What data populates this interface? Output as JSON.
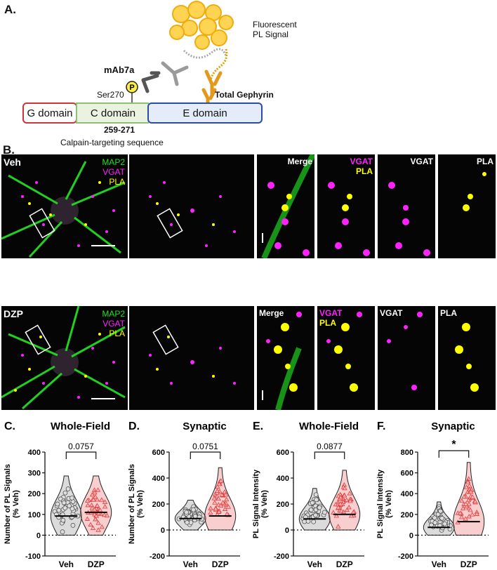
{
  "panelA": {
    "letter": "A.",
    "domains": [
      "G domain",
      "C domain",
      "E domain"
    ],
    "fluorescent_line1": "Fluorescent",
    "fluorescent_line2": "PL Signal",
    "antibody": "mAb7a",
    "phospho_symbol": "P",
    "site": "Ser270",
    "total_gephyrin": "Total Gephyrin",
    "range": "259-271",
    "range_caption": "Calpain-targeting sequence",
    "colors": {
      "g_domain": "#c8353a",
      "c_domain": "#8fbf72",
      "e_domain": "#2b4c9f",
      "c_fill": "#e9f3df",
      "e_fill": "#e4ecf9"
    }
  },
  "panelB": {
    "letter": "B.",
    "rows": [
      {
        "condition": "Veh",
        "legend": [
          "MAP2",
          "VGAT",
          "PLA"
        ],
        "zoom_labels": [
          "Merge",
          "VGAT",
          "PLA",
          "VGAT",
          "PLA"
        ]
      },
      {
        "condition": "DZP",
        "legend": [
          "MAP2",
          "VGAT",
          "PLA"
        ],
        "zoom_labels": [
          "Merge",
          "VGAT",
          "PLA",
          "VGAT",
          "PLA"
        ]
      }
    ],
    "colors": {
      "map2": "#22e022",
      "vgat": "#ff22ff",
      "pla": "#ffff00"
    }
  },
  "plots": [
    {
      "letter": "C.",
      "title": "Whole-Field",
      "ylabel": [
        "Number of PL Signals",
        "(% Veh)"
      ],
      "ylim": [
        -100,
        400
      ],
      "yticks": [
        -100,
        0,
        100,
        200,
        300,
        400
      ],
      "categories": [
        "Veh",
        "DZP"
      ],
      "annotation": "0.0757",
      "medians": [
        92,
        110
      ],
      "max": [
        285,
        285
      ],
      "min": [
        0,
        0
      ]
    },
    {
      "letter": "D.",
      "title": "Synaptic",
      "ylabel": [
        "Number of PL Signals",
        "(% Veh)"
      ],
      "ylim": [
        -200,
        600
      ],
      "yticks": [
        -200,
        0,
        200,
        400,
        600
      ],
      "categories": [
        "Veh",
        "DZP"
      ],
      "annotation": "0.0751",
      "medians": [
        88,
        108
      ],
      "max": [
        230,
        480
      ],
      "min": [
        0,
        0
      ]
    },
    {
      "letter": "E.",
      "title": "Whole-Field",
      "ylabel": [
        "PL Signal Intensity",
        "(% Veh)"
      ],
      "ylim": [
        -200,
        600
      ],
      "yticks": [
        -200,
        0,
        200,
        400,
        600
      ],
      "categories": [
        "Veh",
        "DZP"
      ],
      "annotation": "0.0877",
      "medians": [
        85,
        120
      ],
      "max": [
        320,
        460
      ],
      "min": [
        0,
        0
      ]
    },
    {
      "letter": "F.",
      "title": "Synaptic",
      "ylabel": [
        "PL Signal Intensity",
        "(% Veh)"
      ],
      "ylim": [
        -200,
        800
      ],
      "yticks": [
        -200,
        0,
        200,
        400,
        600,
        800
      ],
      "categories": [
        "Veh",
        "DZP"
      ],
      "annotation": "*",
      "medians": [
        75,
        130
      ],
      "max": [
        320,
        700
      ],
      "min": [
        0,
        0
      ]
    }
  ],
  "chart_data": [
    {
      "type": "violin",
      "title": "Whole-Field",
      "ylabel": "Number of PL Signals (% Veh)",
      "categories": [
        "Veh",
        "DZP"
      ],
      "ylim": [
        -100,
        400
      ],
      "medians": [
        92,
        110
      ],
      "annotation": "0.0757"
    },
    {
      "type": "violin",
      "title": "Synaptic",
      "ylabel": "Number of PL Signals (% Veh)",
      "categories": [
        "Veh",
        "DZP"
      ],
      "ylim": [
        -200,
        600
      ],
      "medians": [
        88,
        108
      ],
      "annotation": "0.0751"
    },
    {
      "type": "violin",
      "title": "Whole-Field",
      "ylabel": "PL Signal Intensity (% Veh)",
      "categories": [
        "Veh",
        "DZP"
      ],
      "ylim": [
        -200,
        600
      ],
      "medians": [
        85,
        120
      ],
      "annotation": "0.0877"
    },
    {
      "type": "violin",
      "title": "Synaptic",
      "ylabel": "PL Signal Intensity (% Veh)",
      "categories": [
        "Veh",
        "DZP"
      ],
      "ylim": [
        -200,
        800
      ],
      "medians": [
        75,
        130
      ],
      "annotation": "*"
    }
  ]
}
